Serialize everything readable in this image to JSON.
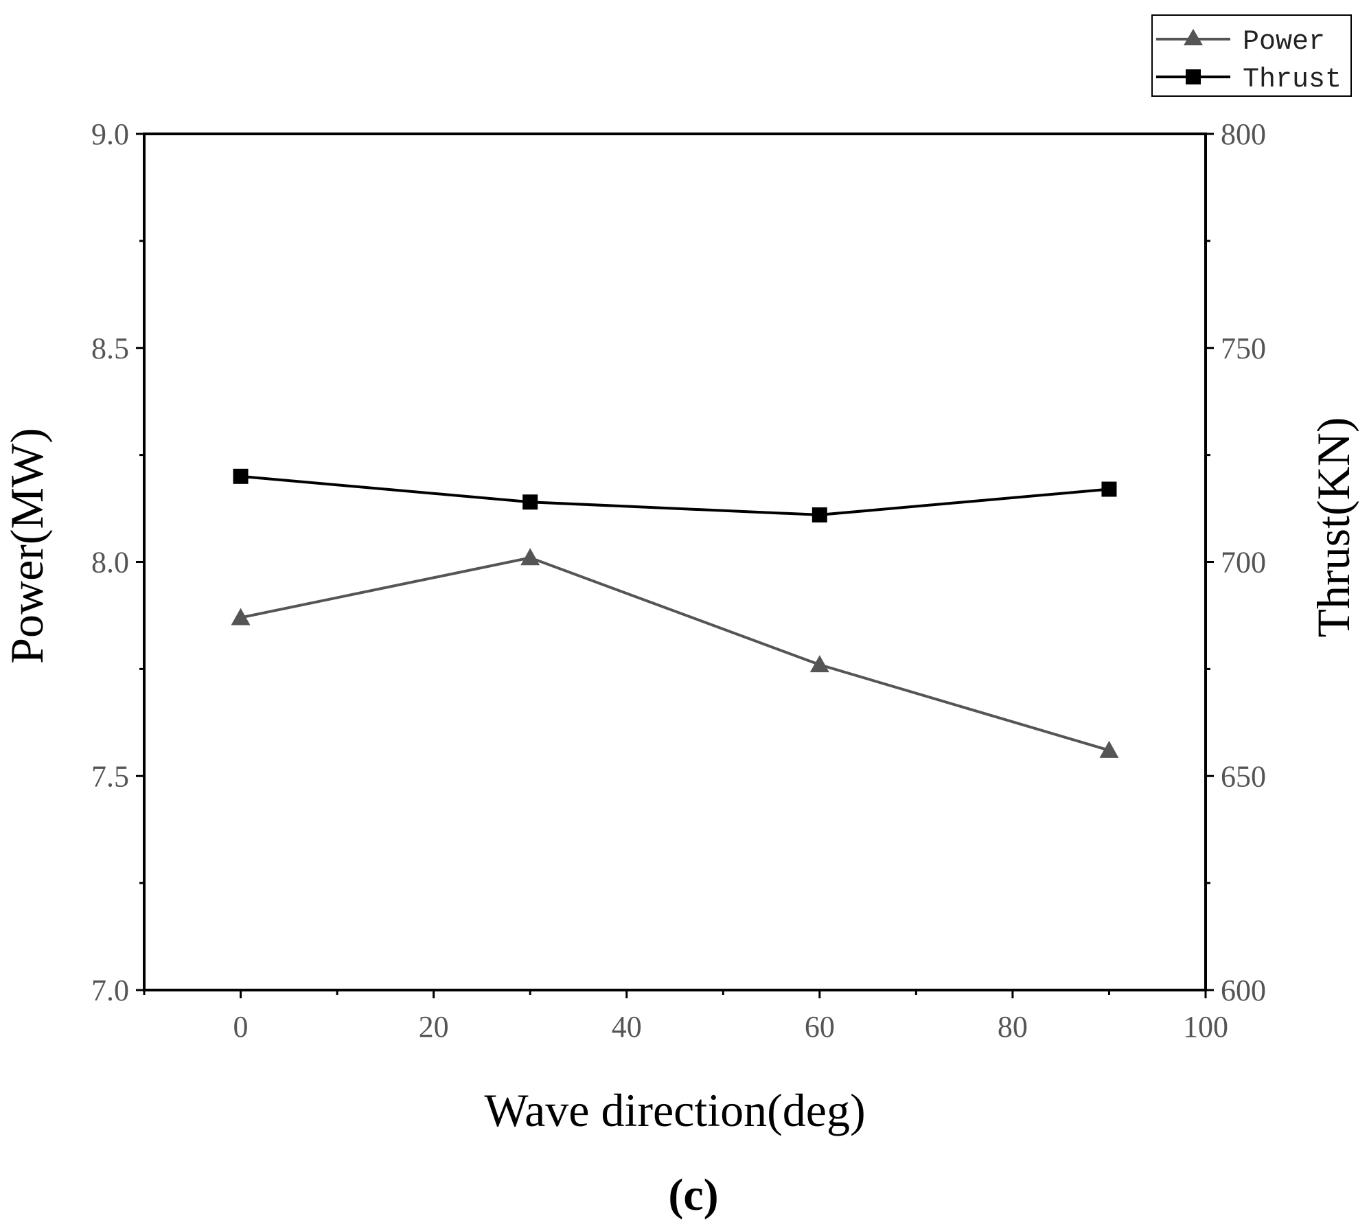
{
  "chart_data": {
    "type": "line",
    "panel_label": "(c)",
    "xlabel": "Wave direction(deg)",
    "ylabel_left": "Power(MW)",
    "ylabel_right": "Thrust(KN)",
    "xlim": [
      -10,
      100
    ],
    "ylim_left": [
      7.0,
      9.0
    ],
    "ylim_right": [
      600,
      800
    ],
    "x_ticks": [
      0,
      20,
      40,
      60,
      80,
      100
    ],
    "x_tick_labels": [
      "0",
      "20",
      "40",
      "60",
      "80",
      "100"
    ],
    "y_left_ticks": [
      7.0,
      7.5,
      8.0,
      8.5,
      9.0
    ],
    "y_left_tick_labels": [
      "7.0",
      "7.5",
      "8.0",
      "8.5",
      "9.0"
    ],
    "y_right_ticks": [
      600,
      650,
      700,
      750,
      800
    ],
    "y_right_tick_labels": [
      "600",
      "650",
      "700",
      "750",
      "800"
    ],
    "grid": false,
    "legend_position": "top-right",
    "series": [
      {
        "name": "Power",
        "axis": "left",
        "marker": "triangle",
        "color": "#555555",
        "x": [
          0,
          30,
          60,
          90
        ],
        "values": [
          7.87,
          8.01,
          7.76,
          7.56
        ]
      },
      {
        "name": "Thrust",
        "axis": "right",
        "marker": "square",
        "color": "#000000",
        "x": [
          0,
          30,
          60,
          90
        ],
        "values": [
          720,
          714,
          711,
          717
        ]
      }
    ]
  }
}
